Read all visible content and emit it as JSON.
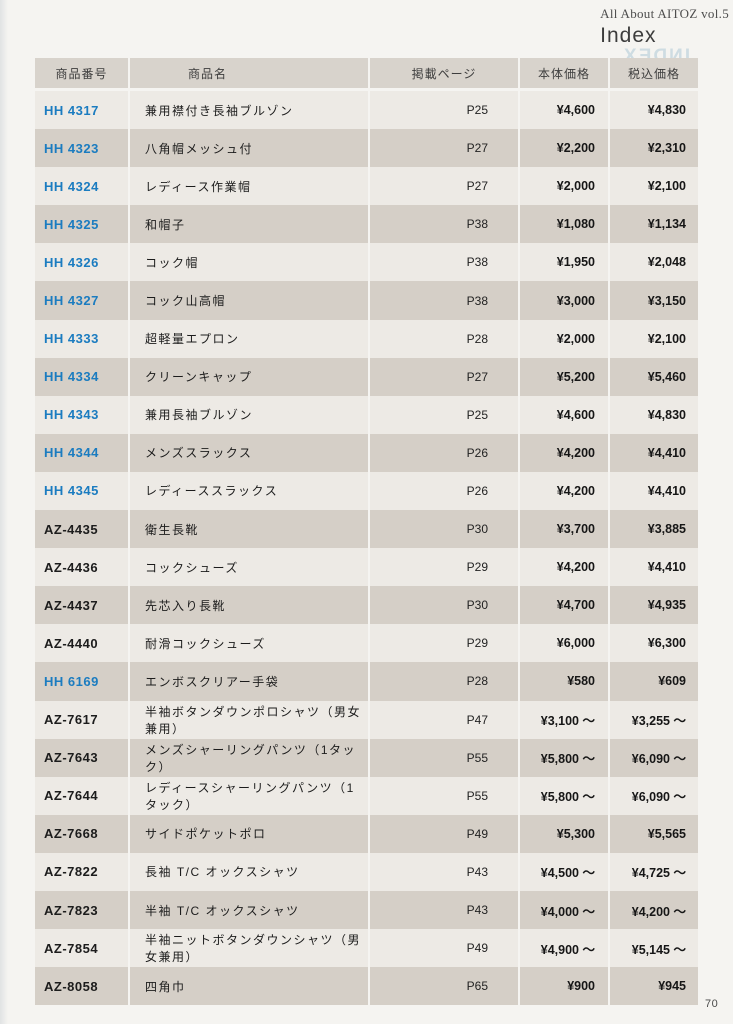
{
  "page": {
    "brand": "All About AITOZ vol.5",
    "title": "Index",
    "watermark": "INDEX",
    "page_number": "70"
  },
  "colors": {
    "accent_blue": "#1b7cc0",
    "row_light": "#edeae5",
    "row_shaded": "#d5cfc7",
    "header_bg": "#d8d3cc",
    "paper": "#f5f4f1"
  },
  "table": {
    "headers": [
      "商品番号",
      "商品名",
      "掲載ページ",
      "本体価格",
      "税込価格"
    ],
    "rows": [
      {
        "code": "HH 4317",
        "name": "兼用襟付き長袖ブルゾン",
        "page": "P25",
        "base_price": "¥4,600",
        "tax_price": "¥4,830",
        "code_blue": true
      },
      {
        "code": "HH 4323",
        "name": "八角帽メッシュ付",
        "page": "P27",
        "base_price": "¥2,200",
        "tax_price": "¥2,310",
        "code_blue": true
      },
      {
        "code": "HH 4324",
        "name": "レディース作業帽",
        "page": "P27",
        "base_price": "¥2,000",
        "tax_price": "¥2,100",
        "code_blue": true
      },
      {
        "code": "HH 4325",
        "name": "和帽子",
        "page": "P38",
        "base_price": "¥1,080",
        "tax_price": "¥1,134",
        "code_blue": true
      },
      {
        "code": "HH 4326",
        "name": "コック帽",
        "page": "P38",
        "base_price": "¥1,950",
        "tax_price": "¥2,048",
        "code_blue": true
      },
      {
        "code": "HH 4327",
        "name": "コック山高帽",
        "page": "P38",
        "base_price": "¥3,000",
        "tax_price": "¥3,150",
        "code_blue": true
      },
      {
        "code": "HH 4333",
        "name": "超軽量エプロン",
        "page": "P28",
        "base_price": "¥2,000",
        "tax_price": "¥2,100",
        "code_blue": true
      },
      {
        "code": "HH 4334",
        "name": "クリーンキャップ",
        "page": "P27",
        "base_price": "¥5,200",
        "tax_price": "¥5,460",
        "code_blue": true
      },
      {
        "code": "HH 4343",
        "name": "兼用長袖ブルゾン",
        "page": "P25",
        "base_price": "¥4,600",
        "tax_price": "¥4,830",
        "code_blue": true
      },
      {
        "code": "HH 4344",
        "name": "メンズスラックス",
        "page": "P26",
        "base_price": "¥4,200",
        "tax_price": "¥4,410",
        "code_blue": true
      },
      {
        "code": "HH 4345",
        "name": "レディーススラックス",
        "page": "P26",
        "base_price": "¥4,200",
        "tax_price": "¥4,410",
        "code_blue": true
      },
      {
        "code": "AZ-4435",
        "name": "衛生長靴",
        "page": "P30",
        "base_price": "¥3,700",
        "tax_price": "¥3,885",
        "code_blue": false
      },
      {
        "code": "AZ-4436",
        "name": "コックシューズ",
        "page": "P29",
        "base_price": "¥4,200",
        "tax_price": "¥4,410",
        "code_blue": false
      },
      {
        "code": "AZ-4437",
        "name": "先芯入り長靴",
        "page": "P30",
        "base_price": "¥4,700",
        "tax_price": "¥4,935",
        "code_blue": false
      },
      {
        "code": "AZ-4440",
        "name": "耐滑コックシューズ",
        "page": "P29",
        "base_price": "¥6,000",
        "tax_price": "¥6,300",
        "code_blue": false
      },
      {
        "code": "HH 6169",
        "name": "エンボスクリアー手袋",
        "page": "P28",
        "base_price": "¥580",
        "tax_price": "¥609",
        "code_blue": true
      },
      {
        "code": "AZ-7617",
        "name": "半袖ボタンダウンポロシャツ（男女兼用）",
        "page": "P47",
        "base_price": "¥3,100 ～",
        "tax_price": "¥3,255 ～",
        "code_blue": false
      },
      {
        "code": "AZ-7643",
        "name": "メンズシャーリングパンツ（1タック）",
        "page": "P55",
        "base_price": "¥5,800 ～",
        "tax_price": "¥6,090 ～",
        "code_blue": false
      },
      {
        "code": "AZ-7644",
        "name": "レディースシャーリングパンツ（1タック）",
        "page": "P55",
        "base_price": "¥5,800 ～",
        "tax_price": "¥6,090 ～",
        "code_blue": false
      },
      {
        "code": "AZ-7668",
        "name": "サイドポケットポロ",
        "page": "P49",
        "base_price": "¥5,300",
        "tax_price": "¥5,565",
        "code_blue": false
      },
      {
        "code": "AZ-7822",
        "name": "長袖 T/C オックスシャツ",
        "page": "P43",
        "base_price": "¥4,500 ～",
        "tax_price": "¥4,725 ～",
        "code_blue": false
      },
      {
        "code": "AZ-7823",
        "name": "半袖 T/C オックスシャツ",
        "page": "P43",
        "base_price": "¥4,000 ～",
        "tax_price": "¥4,200 ～",
        "code_blue": false
      },
      {
        "code": "AZ-7854",
        "name": "半袖ニットボタンダウンシャツ（男女兼用）",
        "page": "P49",
        "base_price": "¥4,900 ～",
        "tax_price": "¥5,145 ～",
        "code_blue": false
      },
      {
        "code": "AZ-8058",
        "name": "四角巾",
        "page": "P65",
        "base_price": "¥900",
        "tax_price": "¥945",
        "code_blue": false
      }
    ]
  }
}
